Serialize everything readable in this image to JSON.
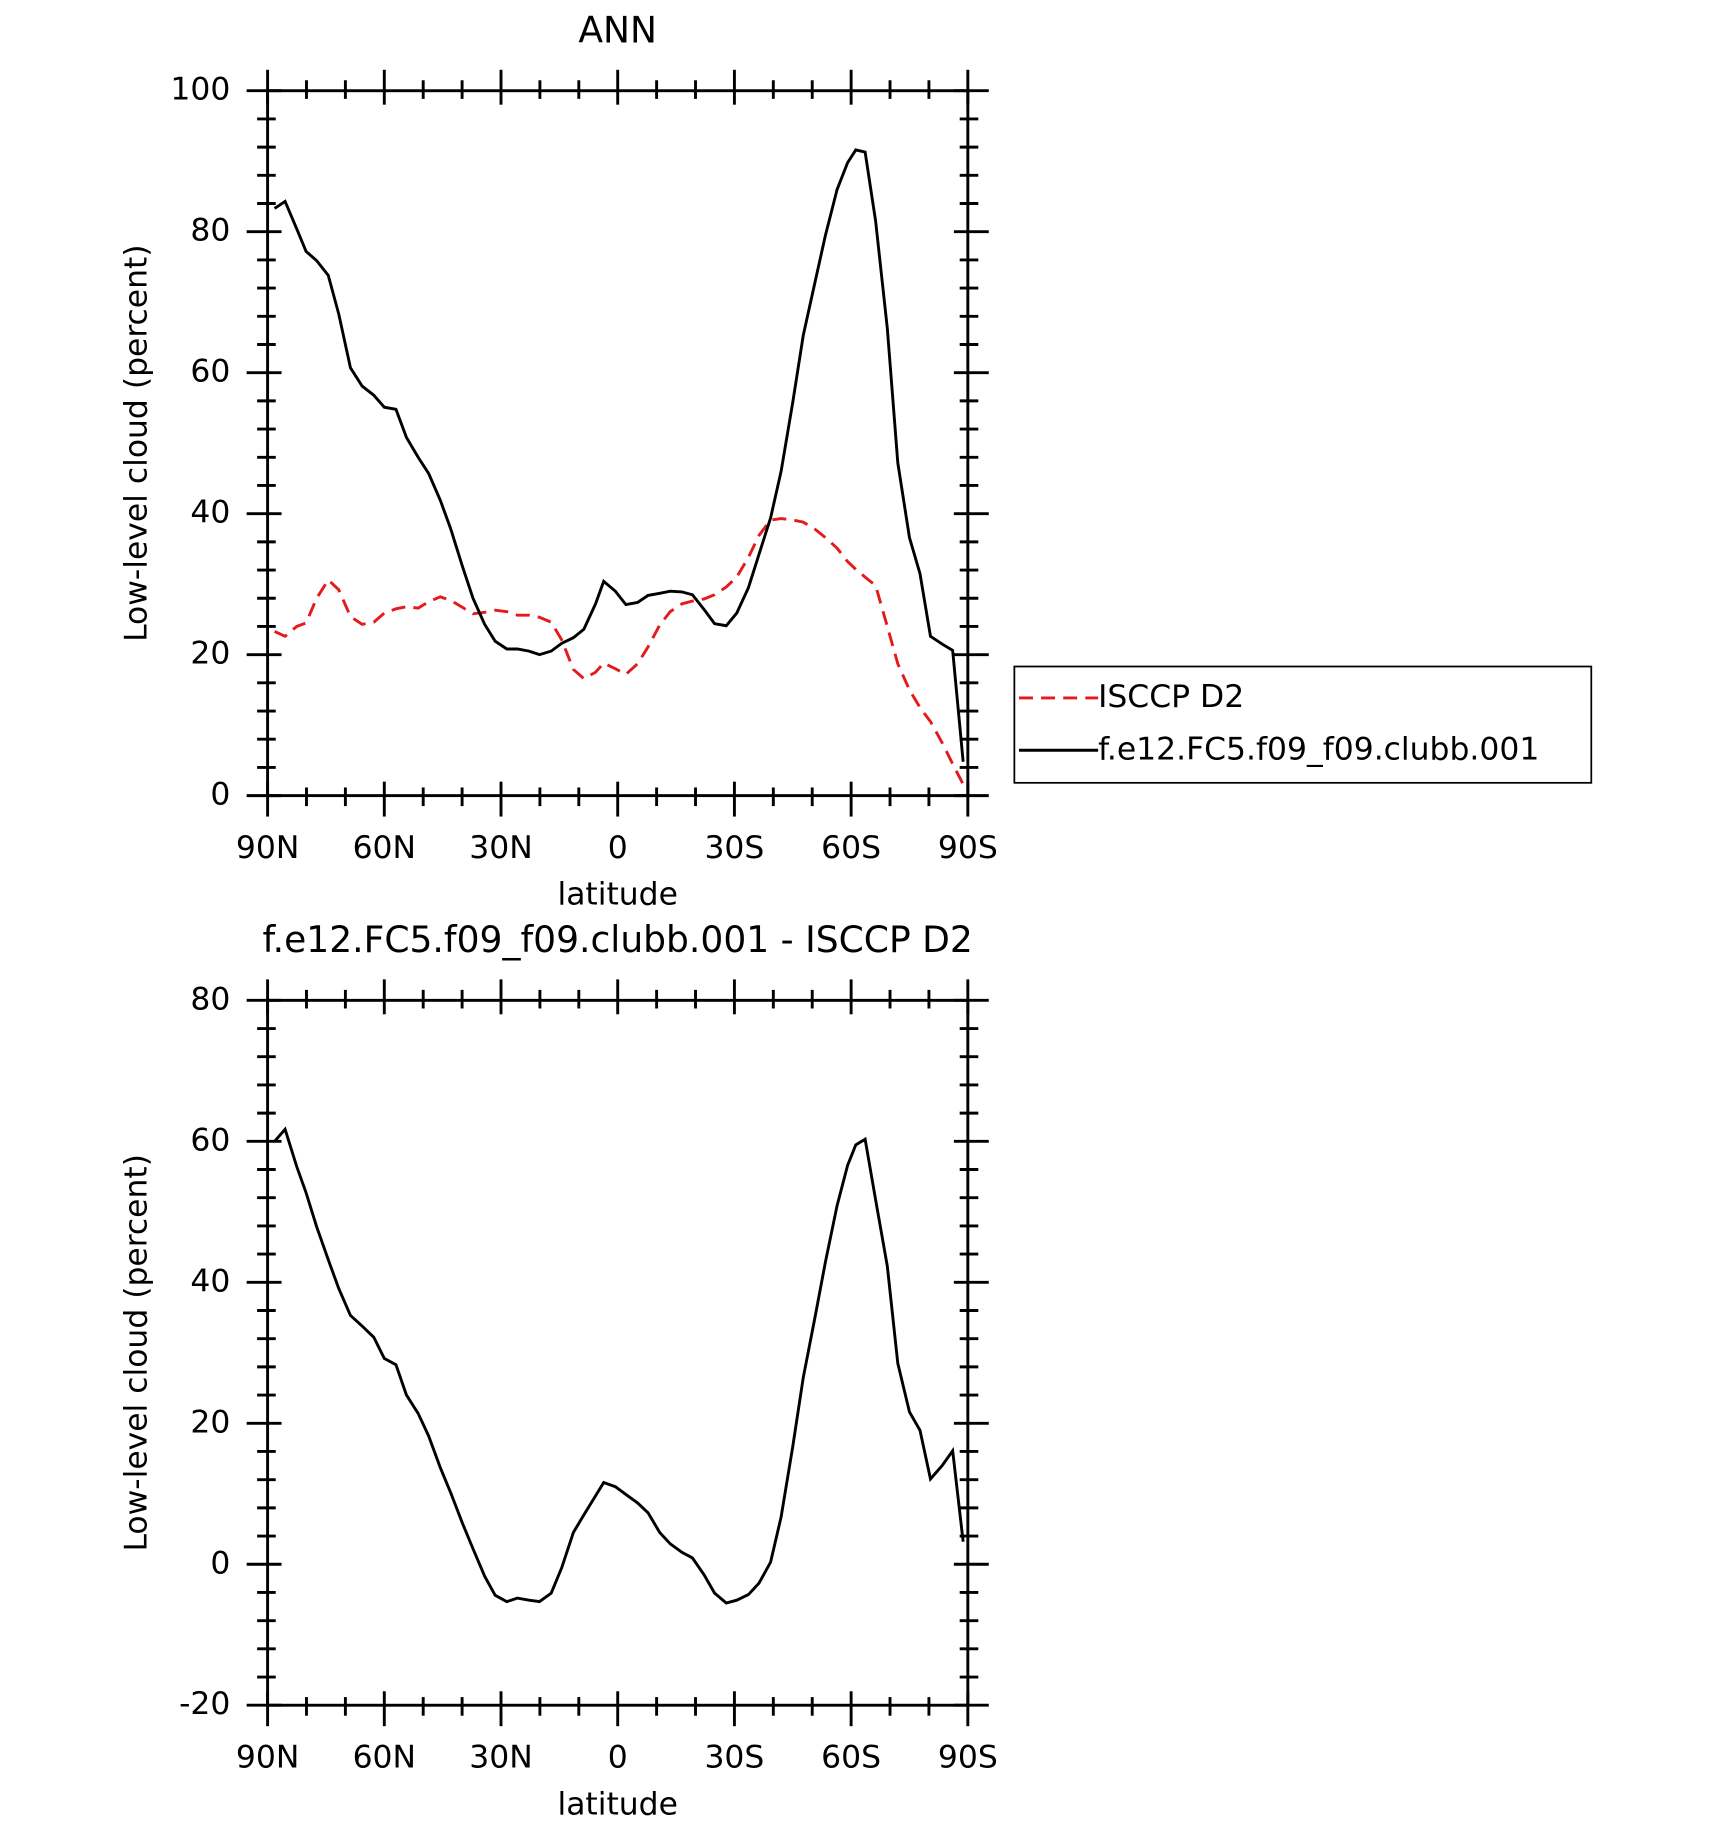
{
  "chart_data": [
    {
      "type": "line",
      "title": "ANN",
      "xlabel": "latitude",
      "ylabel": "Low-level cloud (percent)",
      "x": [
        88.2,
        85.5,
        82.5,
        80.1,
        77.4,
        74.4,
        71.7,
        68.7,
        65.7,
        62.7,
        60,
        57,
        54.3,
        51.3,
        48.6,
        45.6,
        42.9,
        39.9,
        37.2,
        34.2,
        31.5,
        28.5,
        25.8,
        22.8,
        20.1,
        17.1,
        14.4,
        11.4,
        8.7,
        5.7,
        3.6,
        0.6,
        -2.1,
        -5.1,
        -7.8,
        -10.8,
        -13.5,
        -16.5,
        -19.2,
        -22.2,
        -24.9,
        -27.9,
        -30.6,
        -33.6,
        -36.3,
        -39.3,
        -42,
        -45,
        -47.7,
        -50.7,
        -53.4,
        -56.4,
        -59.1,
        -61.2,
        -63.6,
        -66.3,
        -69.3,
        -72,
        -75,
        -77.7,
        -80.4,
        -83.4,
        -86.1,
        -88.8
      ],
      "xlim": [
        90,
        -90
      ],
      "xticks": [
        {
          "value": 90,
          "label": "90N"
        },
        {
          "value": 60,
          "label": "60N"
        },
        {
          "value": 30,
          "label": "30N"
        },
        0,
        {
          "value": -30,
          "label": "30S"
        },
        {
          "value": -60,
          "label": "60S"
        },
        {
          "value": -90,
          "label": "90S"
        }
      ],
      "ylim": [
        0,
        100
      ],
      "yticks": [
        0,
        20,
        40,
        60,
        80,
        100
      ],
      "series": [
        {
          "name": "ISCCP D2",
          "color": "#e41a1c",
          "dashed": true,
          "values": [
            23.3,
            22.6,
            24,
            24.5,
            28,
            30.6,
            29.2,
            25.4,
            24.3,
            24.6,
            25.9,
            26.5,
            26.8,
            26.6,
            27.5,
            28.2,
            27.7,
            26.7,
            25.8,
            26,
            26.3,
            26.1,
            25.6,
            25.6,
            25.3,
            24.6,
            22.1,
            17.9,
            16.6,
            17.5,
            18.8,
            18,
            17.2,
            18.7,
            21.1,
            24.2,
            26.1,
            27.2,
            27.6,
            27.9,
            28.5,
            29.6,
            31,
            33.8,
            36.9,
            39.1,
            39.3,
            39.1,
            38.8,
            37.8,
            36.6,
            35.1,
            33.2,
            32.1,
            31,
            29.8,
            24,
            18.7,
            15,
            12.5,
            10.5,
            7.5,
            4.5,
            1.6
          ]
        },
        {
          "name": "f.e12.FC5.f09_f09.clubb.001",
          "color": "#000000",
          "dashed": false,
          "values": [
            83.3,
            84.3,
            80.4,
            77.2,
            75.9,
            73.8,
            68.3,
            60.7,
            58.1,
            56.8,
            55.1,
            54.8,
            50.8,
            48,
            45.7,
            41.9,
            37.8,
            32.5,
            28,
            24.3,
            21.9,
            20.8,
            20.8,
            20.5,
            20,
            20.5,
            21.6,
            22.4,
            23.6,
            27.2,
            30.4,
            29,
            27.1,
            27.4,
            28.4,
            28.7,
            29,
            28.9,
            28.5,
            26.4,
            24.4,
            24.1,
            25.9,
            29.5,
            34.2,
            39.4,
            46,
            55.8,
            65.3,
            72.8,
            79.5,
            86,
            89.8,
            91.6,
            91.3,
            81.5,
            66.3,
            47.2,
            36.6,
            31.5,
            22.6,
            21.5,
            20.6,
            4.8
          ]
        }
      ]
    },
    {
      "type": "line",
      "title": "f.e12.FC5.f09_f09.clubb.001 - ISCCP D2",
      "xlabel": "latitude",
      "ylabel": "Low-level cloud (percent)",
      "x": [
        88.2,
        85.5,
        82.5,
        80.1,
        77.4,
        74.4,
        71.7,
        68.7,
        65.7,
        62.7,
        60,
        57,
        54.3,
        51.3,
        48.6,
        45.6,
        42.9,
        39.9,
        37.2,
        34.2,
        31.5,
        28.5,
        25.8,
        22.8,
        20.1,
        17.1,
        14.4,
        11.4,
        8.7,
        5.7,
        3.6,
        0.6,
        -2.1,
        -5.1,
        -7.8,
        -10.8,
        -13.5,
        -16.5,
        -19.2,
        -22.2,
        -24.9,
        -27.9,
        -30.6,
        -33.6,
        -36.3,
        -39.3,
        -42,
        -45,
        -47.7,
        -50.7,
        -53.4,
        -56.4,
        -59.1,
        -61.2,
        -63.6,
        -66.3,
        -69.3,
        -72,
        -75,
        -77.7,
        -80.4,
        -83.4,
        -86.1,
        -88.8
      ],
      "xlim": [
        90,
        -90
      ],
      "xticks": [
        {
          "value": 90,
          "label": "90N"
        },
        {
          "value": 60,
          "label": "60N"
        },
        {
          "value": 30,
          "label": "30N"
        },
        0,
        {
          "value": -30,
          "label": "30S"
        },
        {
          "value": -60,
          "label": "60S"
        },
        {
          "value": -90,
          "label": "90S"
        }
      ],
      "ylim": [
        -20,
        80
      ],
      "yticks": [
        -20,
        0,
        20,
        40,
        60,
        80
      ],
      "series": [
        {
          "color": "#000000",
          "dashed": false,
          "values": [
            60,
            61.7,
            56.4,
            52.7,
            47.9,
            43.2,
            39.1,
            35.3,
            33.8,
            32.2,
            29.2,
            28.3,
            24,
            21.4,
            18.2,
            13.7,
            10.1,
            5.8,
            2.2,
            -1.7,
            -4.4,
            -5.3,
            -4.8,
            -5.1,
            -5.3,
            -4.1,
            -0.5,
            4.5,
            7,
            9.7,
            11.6,
            11,
            9.9,
            8.7,
            7.3,
            4.5,
            2.9,
            1.7,
            0.9,
            -1.5,
            -4.1,
            -5.5,
            -5.1,
            -4.3,
            -2.7,
            0.3,
            6.7,
            16.7,
            26.5,
            35,
            42.9,
            50.9,
            56.6,
            59.5,
            60.3,
            51.7,
            42.3,
            28.5,
            21.6,
            19,
            12.1,
            14,
            16.1,
            3.2
          ]
        }
      ]
    }
  ]
}
